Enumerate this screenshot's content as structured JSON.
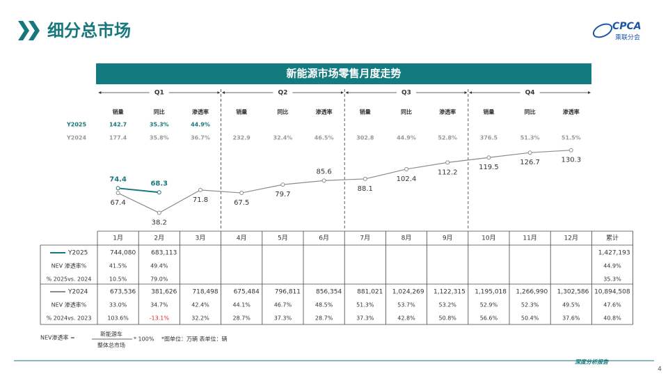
{
  "header": {
    "title": "细分总市场",
    "logo_text": "CPCA",
    "logo_sub": "乘联分会"
  },
  "banner": "新能源市场零售月度走势",
  "quarters": [
    "Q1",
    "Q2",
    "Q3",
    "Q4"
  ],
  "summary": {
    "metrics": [
      "销量",
      "同比",
      "渗透率",
      "销量",
      "同比",
      "渗透率",
      "销量",
      "同比",
      "渗透率",
      "销量",
      "同比",
      "渗透率"
    ],
    "rows": [
      {
        "name": "Y2025",
        "values": [
          "142.7",
          "35.3%",
          "44.9%",
          null,
          null,
          null,
          null,
          null,
          null,
          null,
          null,
          null
        ]
      },
      {
        "name": "Y2024",
        "values": [
          "177.4",
          "35.8%",
          "36.7%",
          "232.9",
          "32.4%",
          "46.5%",
          "302.8",
          "44.9%",
          "52.8%",
          "376.5",
          "51.3%",
          "51.5%"
        ]
      }
    ]
  },
  "chart_data": {
    "type": "line",
    "series": [
      {
        "name": "Y2025",
        "color": "#16777c",
        "values": [
          74.4,
          68.3,
          null,
          null,
          null,
          null,
          null,
          null,
          null,
          null,
          null,
          null
        ]
      },
      {
        "name": "Y2024",
        "color": "#8c8c8c",
        "values": [
          67.4,
          38.2,
          71.8,
          67.5,
          79.7,
          85.6,
          88.1,
          102.4,
          112.2,
          119.5,
          126.7,
          130.3
        ]
      }
    ]
  },
  "table": {
    "header": [
      "1月",
      "2月",
      "3月",
      "4月",
      "5月",
      "6月",
      "7月",
      "8月",
      "9月",
      "10月",
      "11月",
      "12月",
      "累计"
    ],
    "groups": [
      {
        "rows": [
          {
            "label": null,
            "cells": [
              "744,080",
              "683,113",
              null,
              null,
              null,
              null,
              null,
              null,
              null,
              null,
              null,
              null,
              "1,427,193"
            ]
          },
          {
            "label": "NEV 渗透率%",
            "cells": [
              "41.5%",
              "49.4%",
              null,
              null,
              null,
              null,
              null,
              null,
              null,
              null,
              null,
              null,
              "44.9%"
            ]
          },
          {
            "label": "% 2025vs. 2024",
            "cells": [
              "10.5%",
              "79.0%",
              null,
              null,
              null,
              null,
              null,
              null,
              null,
              null,
              null,
              null,
              "35.3%"
            ]
          }
        ]
      },
      {
        "rows": [
          {
            "label": null,
            "cells": [
              "673,536",
              "381,626",
              "718,498",
              "675,484",
              "796,811",
              "856,354",
              "881,021",
              "1,024,269",
              "1,122,315",
              "1,195,018",
              "1,266,990",
              "1,302,586",
              "10,894,508"
            ]
          },
          {
            "label": "NEV 渗透率%",
            "cells": [
              "33.0%",
              "34.7%",
              "42.4%",
              "44.1%",
              "46.7%",
              "48.5%",
              "51.3%",
              "53.7%",
              "53.2%",
              "52.9%",
              "52.3%",
              "49.5%",
              "47.6%"
            ]
          },
          {
            "label": "% 2024vs. 2023",
            "cells": [
              "103.6%",
              "-13.1%",
              "32.2%",
              "28.7%",
              "37.3%",
              "28.7%",
              "37.3%",
              "42.8%",
              "50.8%",
              "56.6%",
              "50.4%",
              "37.6%",
              "40.8%"
            ]
          }
        ]
      }
    ]
  },
  "footnote": {
    "formula_left": "NEV渗透率 =",
    "numerator": "新能源车",
    "denominator": "整体总市场",
    "formula_right": "* 100%",
    "units": "*图单位：万辆    表单位：辆"
  },
  "footer": {
    "text": "深度分析报告",
    "page": "4"
  }
}
